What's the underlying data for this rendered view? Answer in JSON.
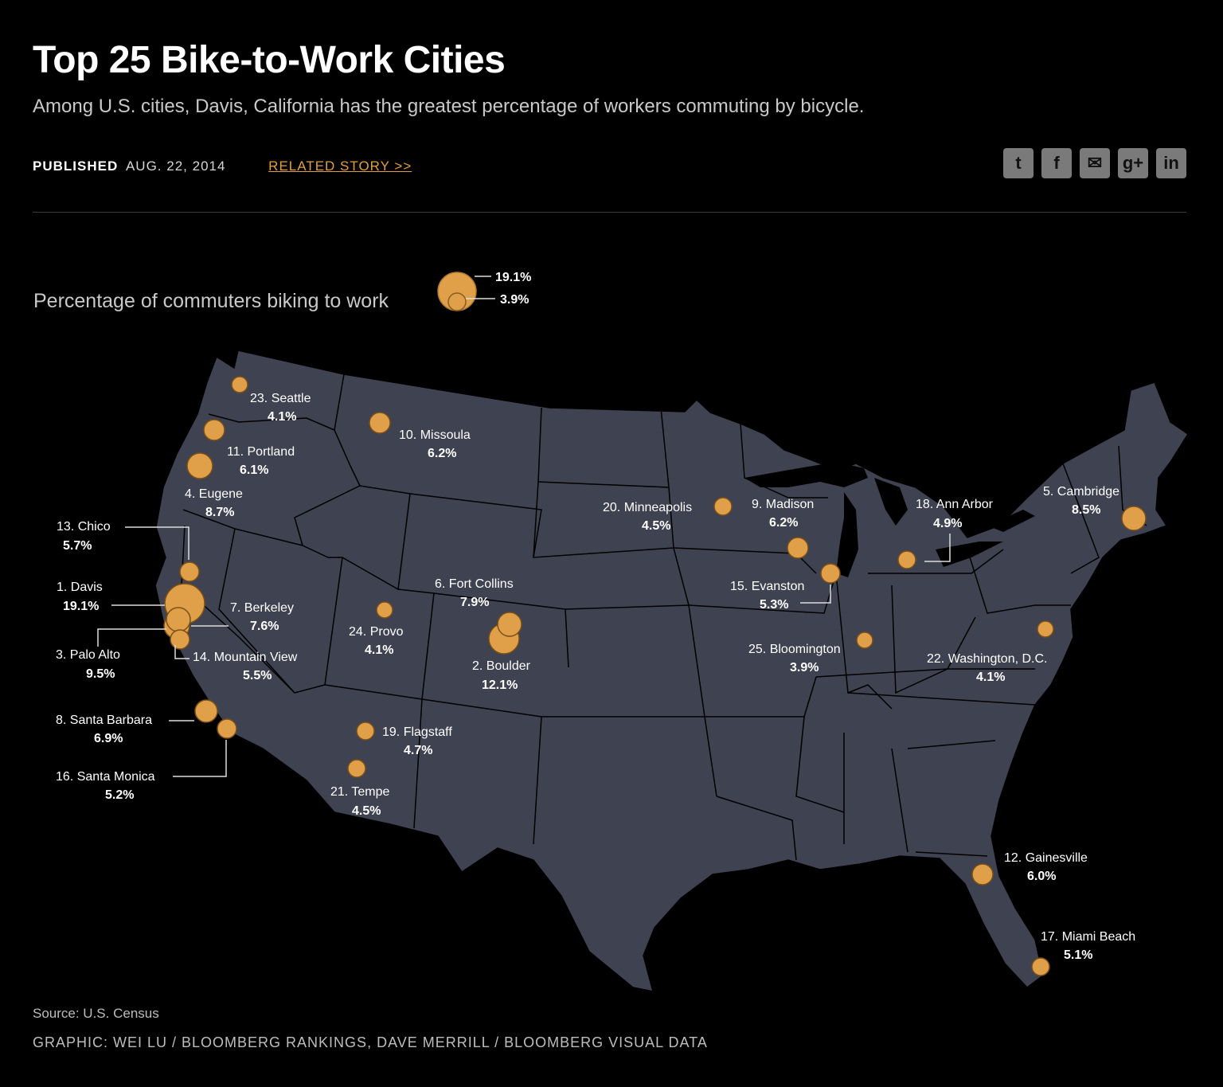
{
  "header": {
    "title": "Top 25 Bike-to-Work Cities",
    "subtitle": "Among U.S. cities, Davis, California has the greatest percentage of workers commuting by bicycle.",
    "published_label": "PUBLISHED",
    "published_date": "AUG. 22, 2014",
    "related_link": "RELATED STORY >>"
  },
  "social": [
    {
      "name": "twitter-icon",
      "glyph": "t"
    },
    {
      "name": "facebook-icon",
      "glyph": "f"
    },
    {
      "name": "email-icon",
      "glyph": "✉"
    },
    {
      "name": "google-plus-icon",
      "glyph": "g+"
    },
    {
      "name": "linkedin-icon",
      "glyph": "in"
    }
  ],
  "legend": {
    "title": "Percentage of commuters biking to work",
    "max_label": "19.1%",
    "min_label": "3.9%"
  },
  "colors": {
    "background": "#000000",
    "land": "#3f4250",
    "state_border": "#000000",
    "bubble": "#e0a04a",
    "accent_link": "#e3a03e"
  },
  "cities": [
    {
      "rank": 1,
      "name": "Davis",
      "pct": "19.1%"
    },
    {
      "rank": 2,
      "name": "Boulder",
      "pct": "12.1%"
    },
    {
      "rank": 3,
      "name": "Palo Alto",
      "pct": "9.5%"
    },
    {
      "rank": 4,
      "name": "Eugene",
      "pct": "8.7%"
    },
    {
      "rank": 5,
      "name": "Cambridge",
      "pct": "8.5%"
    },
    {
      "rank": 6,
      "name": "Fort Collins",
      "pct": "7.9%"
    },
    {
      "rank": 7,
      "name": "Berkeley",
      "pct": "7.6%"
    },
    {
      "rank": 8,
      "name": "Santa Barbara",
      "pct": "6.9%"
    },
    {
      "rank": 9,
      "name": "Madison",
      "pct": "6.2%"
    },
    {
      "rank": 10,
      "name": "Missoula",
      "pct": "6.2%"
    },
    {
      "rank": 11,
      "name": "Portland",
      "pct": "6.1%"
    },
    {
      "rank": 12,
      "name": "Gainesville",
      "pct": "6.0%"
    },
    {
      "rank": 13,
      "name": "Chico",
      "pct": "5.7%"
    },
    {
      "rank": 14,
      "name": "Mountain View",
      "pct": "5.5%"
    },
    {
      "rank": 15,
      "name": "Evanston",
      "pct": "5.3%"
    },
    {
      "rank": 16,
      "name": "Santa Monica",
      "pct": "5.2%"
    },
    {
      "rank": 17,
      "name": "Miami Beach",
      "pct": "5.1%"
    },
    {
      "rank": 18,
      "name": "Ann Arbor",
      "pct": "4.9%"
    },
    {
      "rank": 19,
      "name": "Flagstaff",
      "pct": "4.7%"
    },
    {
      "rank": 20,
      "name": "Minneapolis",
      "pct": "4.5%"
    },
    {
      "rank": 21,
      "name": "Tempe",
      "pct": "4.5%"
    },
    {
      "rank": 22,
      "name": "Washington, D.C.",
      "pct": "4.1%"
    },
    {
      "rank": 23,
      "name": "Seattle",
      "pct": "4.1%"
    },
    {
      "rank": 24,
      "name": "Provo",
      "pct": "4.1%"
    },
    {
      "rank": 25,
      "name": "Bloomington",
      "pct": "3.9%"
    }
  ],
  "footer": {
    "source": "Source: U.S. Census",
    "credit": "GRAPHIC: WEI LU / BLOOMBERG RANKINGS, DAVE MERRILL / BLOOMBERG VISUAL DATA"
  }
}
